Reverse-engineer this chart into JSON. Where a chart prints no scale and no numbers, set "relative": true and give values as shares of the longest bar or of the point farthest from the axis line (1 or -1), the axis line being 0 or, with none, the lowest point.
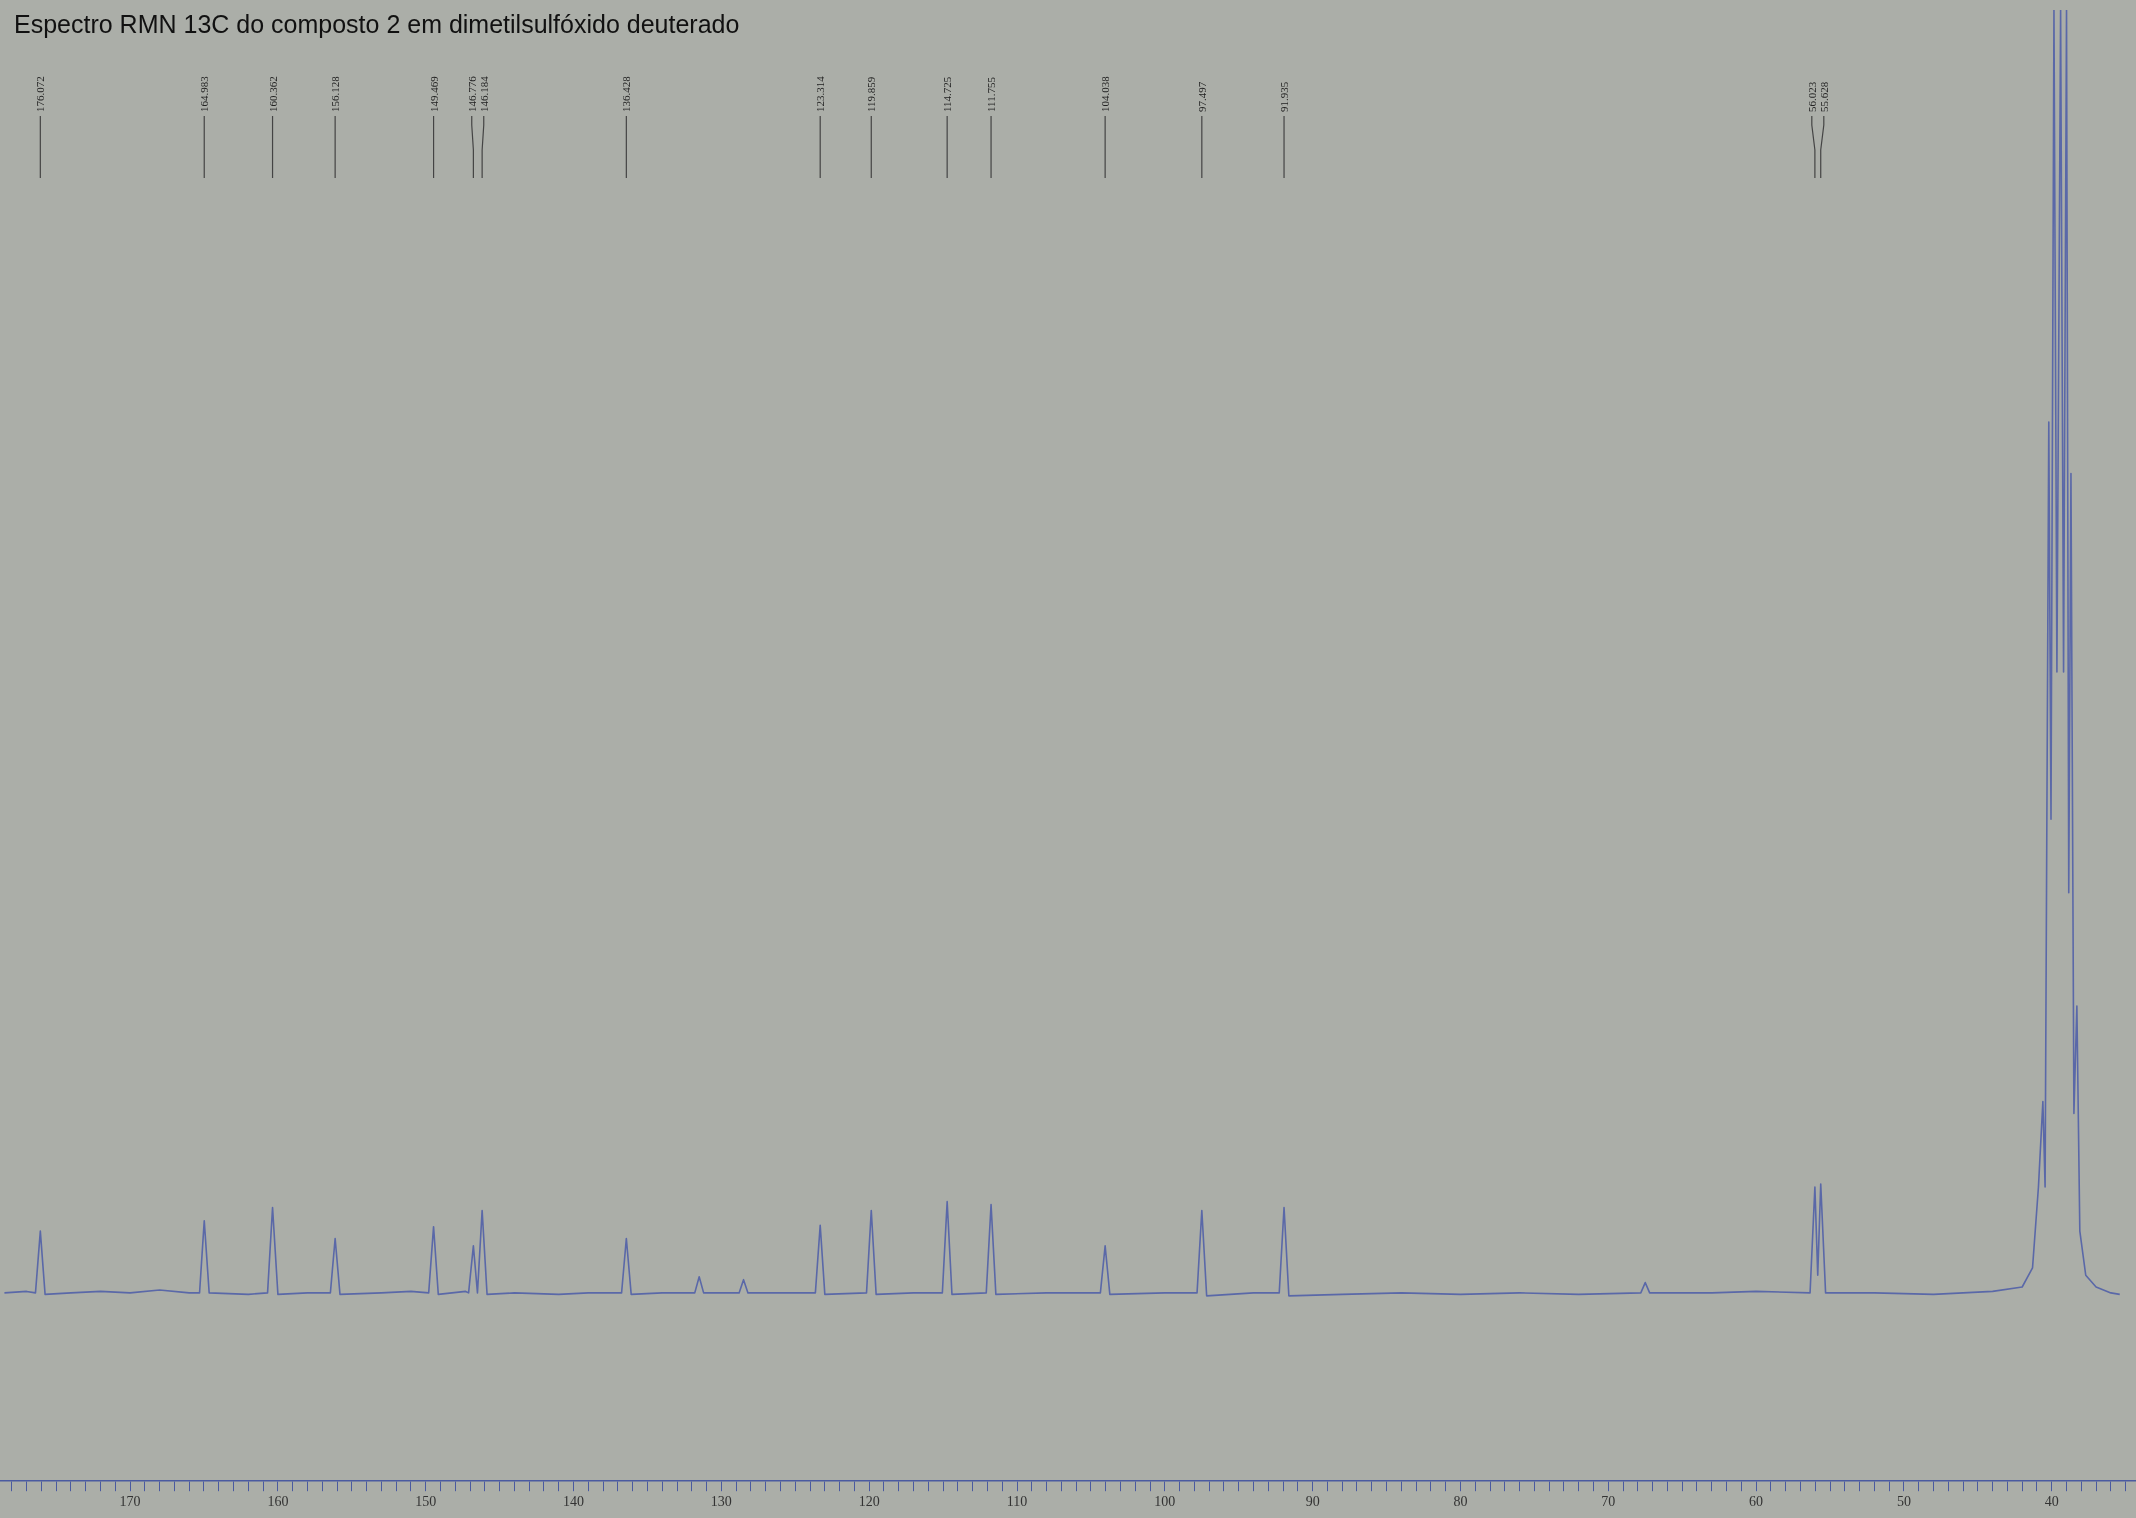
{
  "chart_data": {
    "type": "line",
    "title": "Espectro RMN 13C do composto 2 em dimetilsulfóxido deuterado",
    "relative": true,
    "marker": "none",
    "legend": false,
    "grid": false,
    "tick_labels": "x",
    "xlim": [
      178.8,
      34.3
    ],
    "xticks": [
      {
        "value": 178,
        "label": null
      },
      {
        "value": 177,
        "label": null
      },
      {
        "value": 176,
        "label": null
      },
      {
        "value": 175,
        "label": null
      },
      {
        "value": 174,
        "label": null
      },
      {
        "value": 173,
        "label": null
      },
      {
        "value": 172,
        "label": null
      },
      {
        "value": 171,
        "label": null
      },
      170,
      {
        "value": 169,
        "label": null
      },
      {
        "value": 168,
        "label": null
      },
      {
        "value": 167,
        "label": null
      },
      {
        "value": 166,
        "label": null
      },
      {
        "value": 165,
        "label": null
      },
      {
        "value": 164,
        "label": null
      },
      {
        "value": 163,
        "label": null
      },
      {
        "value": 162,
        "label": null
      },
      {
        "value": 161,
        "label": null
      },
      160,
      {
        "value": 159,
        "label": null
      },
      {
        "value": 158,
        "label": null
      },
      {
        "value": 157,
        "label": null
      },
      {
        "value": 156,
        "label": null
      },
      {
        "value": 155,
        "label": null
      },
      {
        "value": 154,
        "label": null
      },
      {
        "value": 153,
        "label": null
      },
      {
        "value": 152,
        "label": null
      },
      {
        "value": 151,
        "label": null
      },
      150,
      {
        "value": 149,
        "label": null
      },
      {
        "value": 148,
        "label": null
      },
      {
        "value": 147,
        "label": null
      },
      {
        "value": 146,
        "label": null
      },
      {
        "value": 145,
        "label": null
      },
      {
        "value": 144,
        "label": null
      },
      {
        "value": 143,
        "label": null
      },
      {
        "value": 142,
        "label": null
      },
      {
        "value": 141,
        "label": null
      },
      140,
      {
        "value": 139,
        "label": null
      },
      {
        "value": 138,
        "label": null
      },
      {
        "value": 137,
        "label": null
      },
      {
        "value": 136,
        "label": null
      },
      {
        "value": 135,
        "label": null
      },
      {
        "value": 134,
        "label": null
      },
      {
        "value": 133,
        "label": null
      },
      {
        "value": 132,
        "label": null
      },
      {
        "value": 131,
        "label": null
      },
      130,
      {
        "value": 129,
        "label": null
      },
      {
        "value": 128,
        "label": null
      },
      {
        "value": 127,
        "label": null
      },
      {
        "value": 126,
        "label": null
      },
      {
        "value": 125,
        "label": null
      },
      {
        "value": 124,
        "label": null
      },
      {
        "value": 123,
        "label": null
      },
      {
        "value": 122,
        "label": null
      },
      {
        "value": 121,
        "label": null
      },
      120,
      {
        "value": 119,
        "label": null
      },
      {
        "value": 118,
        "label": null
      },
      {
        "value": 117,
        "label": null
      },
      {
        "value": 116,
        "label": null
      },
      {
        "value": 115,
        "label": null
      },
      {
        "value": 114,
        "label": null
      },
      {
        "value": 113,
        "label": null
      },
      {
        "value": 112,
        "label": null
      },
      {
        "value": 111,
        "label": null
      },
      110,
      {
        "value": 109,
        "label": null
      },
      {
        "value": 108,
        "label": null
      },
      {
        "value": 107,
        "label": null
      },
      {
        "value": 106,
        "label": null
      },
      {
        "value": 105,
        "label": null
      },
      {
        "value": 104,
        "label": null
      },
      {
        "value": 103,
        "label": null
      },
      {
        "value": 102,
        "label": null
      },
      {
        "value": 101,
        "label": null
      },
      100,
      {
        "value": 99,
        "label": null
      },
      {
        "value": 98,
        "label": null
      },
      {
        "value": 97,
        "label": null
      },
      {
        "value": 96,
        "label": null
      },
      {
        "value": 95,
        "label": null
      },
      {
        "value": 94,
        "label": null
      },
      {
        "value": 93,
        "label": null
      },
      {
        "value": 92,
        "label": null
      },
      {
        "value": 91,
        "label": null
      },
      90,
      {
        "value": 89,
        "label": null
      },
      {
        "value": 88,
        "label": null
      },
      {
        "value": 87,
        "label": null
      },
      {
        "value": 86,
        "label": null
      },
      {
        "value": 85,
        "label": null
      },
      {
        "value": 84,
        "label": null
      },
      {
        "value": 83,
        "label": null
      },
      {
        "value": 82,
        "label": null
      },
      {
        "value": 81,
        "label": null
      },
      80,
      {
        "value": 79,
        "label": null
      },
      {
        "value": 78,
        "label": null
      },
      {
        "value": 77,
        "label": null
      },
      {
        "value": 76,
        "label": null
      },
      {
        "value": 75,
        "label": null
      },
      {
        "value": 74,
        "label": null
      },
      {
        "value": 73,
        "label": null
      },
      {
        "value": 72,
        "label": null
      },
      {
        "value": 71,
        "label": null
      },
      70,
      {
        "value": 69,
        "label": null
      },
      {
        "value": 68,
        "label": null
      },
      {
        "value": 67,
        "label": null
      },
      {
        "value": 66,
        "label": null
      },
      {
        "value": 65,
        "label": null
      },
      {
        "value": 64,
        "label": null
      },
      {
        "value": 63,
        "label": null
      },
      {
        "value": 62,
        "label": null
      },
      {
        "value": 61,
        "label": null
      },
      60,
      {
        "value": 59,
        "label": null
      },
      {
        "value": 58,
        "label": null
      },
      {
        "value": 57,
        "label": null
      },
      {
        "value": 56,
        "label": null
      },
      {
        "value": 55,
        "label": null
      },
      {
        "value": 54,
        "label": null
      },
      {
        "value": 53,
        "label": null
      },
      {
        "value": 52,
        "label": null
      },
      {
        "value": 51,
        "label": null
      },
      50,
      {
        "value": 49,
        "label": null
      },
      {
        "value": 48,
        "label": null
      },
      {
        "value": 47,
        "label": null
      },
      {
        "value": 46,
        "label": null
      },
      {
        "value": 45,
        "label": null
      },
      {
        "value": 44,
        "label": null
      },
      {
        "value": 43,
        "label": null
      },
      {
        "value": 42,
        "label": null
      },
      {
        "value": 41,
        "label": null
      },
      40,
      {
        "value": 39,
        "label": null
      },
      {
        "value": 38,
        "label": null
      },
      {
        "value": 37,
        "label": null
      },
      {
        "value": 36,
        "label": null
      },
      {
        "value": 35,
        "label": null
      }
    ],
    "series": [
      {
        "color": "#5a68a8",
        "x": [
          178.5,
          177,
          176.4,
          176.072,
          175.75,
          174,
          172,
          170,
          168,
          166,
          165.3,
          164.983,
          164.65,
          162,
          160.7,
          160.362,
          160.0,
          158,
          156.45,
          156.128,
          155.8,
          153,
          151,
          149.8,
          149.469,
          149.15,
          147.3,
          147.1,
          146.776,
          146.5,
          146.184,
          145.85,
          144,
          141,
          139,
          136.75,
          136.428,
          136.1,
          134,
          131.8,
          131.5,
          131.2,
          128.8,
          128.5,
          128.2,
          126,
          123.64,
          123.314,
          123.0,
          120.18,
          119.859,
          119.53,
          117,
          115.05,
          114.725,
          114.4,
          112.08,
          111.755,
          111.43,
          108,
          104.36,
          104.038,
          103.72,
          100,
          97.82,
          97.497,
          97.17,
          94,
          92.26,
          91.935,
          91.61,
          88,
          84,
          80,
          76,
          72,
          67.8,
          67.5,
          67.2,
          63,
          60,
          56.35,
          56.023,
          55.83,
          55.628,
          55.3,
          52,
          48,
          44,
          42,
          41.3,
          40.9,
          40.6,
          40.45,
          40.2,
          40.05,
          39.85,
          39.65,
          39.4,
          39.2,
          39.0,
          38.85,
          38.7,
          38.5,
          38.3,
          38.1,
          37.7,
          37.0,
          36.0,
          35.4
        ],
        "values": [
          0.128,
          0.129,
          0.128,
          0.17,
          0.127,
          0.128,
          0.129,
          0.128,
          0.13,
          0.128,
          0.128,
          0.177,
          0.128,
          0.127,
          0.128,
          0.186,
          0.127,
          0.128,
          0.128,
          0.165,
          0.127,
          0.128,
          0.129,
          0.128,
          0.173,
          0.127,
          0.129,
          0.128,
          0.16,
          0.128,
          0.184,
          0.127,
          0.128,
          0.127,
          0.128,
          0.128,
          0.165,
          0.127,
          0.128,
          0.128,
          0.139,
          0.128,
          0.128,
          0.137,
          0.128,
          0.128,
          0.128,
          0.174,
          0.127,
          0.128,
          0.184,
          0.127,
          0.128,
          0.128,
          0.19,
          0.127,
          0.128,
          0.188,
          0.127,
          0.128,
          0.128,
          0.16,
          0.127,
          0.128,
          0.128,
          0.184,
          0.126,
          0.128,
          0.128,
          0.186,
          0.126,
          0.127,
          0.128,
          0.127,
          0.128,
          0.127,
          0.128,
          0.135,
          0.128,
          0.128,
          0.129,
          0.128,
          0.2,
          0.14,
          0.202,
          0.128,
          0.128,
          0.127,
          0.129,
          0.132,
          0.145,
          0.2,
          0.258,
          0.2,
          0.72,
          0.45,
          1,
          0.55,
          1,
          0.55,
          1,
          0.4,
          0.685,
          0.25,
          0.323,
          0.17,
          0.14,
          0.132,
          0.128,
          0.127
        ]
      }
    ],
    "annotations": [
      {
        "text": "176.072",
        "x": 176.072
      },
      {
        "text": "164.983",
        "x": 164.983
      },
      {
        "text": "160.362",
        "x": 160.362
      },
      {
        "text": "156.128",
        "x": 156.128
      },
      {
        "text": "149.469",
        "x": 149.469
      },
      {
        "text": "146.776",
        "x": 146.776
      },
      {
        "text": "146.184",
        "x": 146.184
      },
      {
        "text": "136.428",
        "x": 136.428
      },
      {
        "text": "123.314",
        "x": 123.314
      },
      {
        "text": "119.859",
        "x": 119.859
      },
      {
        "text": "114.725",
        "x": 114.725
      },
      {
        "text": "111.755",
        "x": 111.755
      },
      {
        "text": "104.038",
        "x": 104.038
      },
      {
        "text": "97.497",
        "x": 97.497
      },
      {
        "text": "91.935",
        "x": 91.935
      },
      {
        "text": "56.023",
        "x": 56.023
      },
      {
        "text": "55.628",
        "x": 55.628
      }
    ]
  }
}
